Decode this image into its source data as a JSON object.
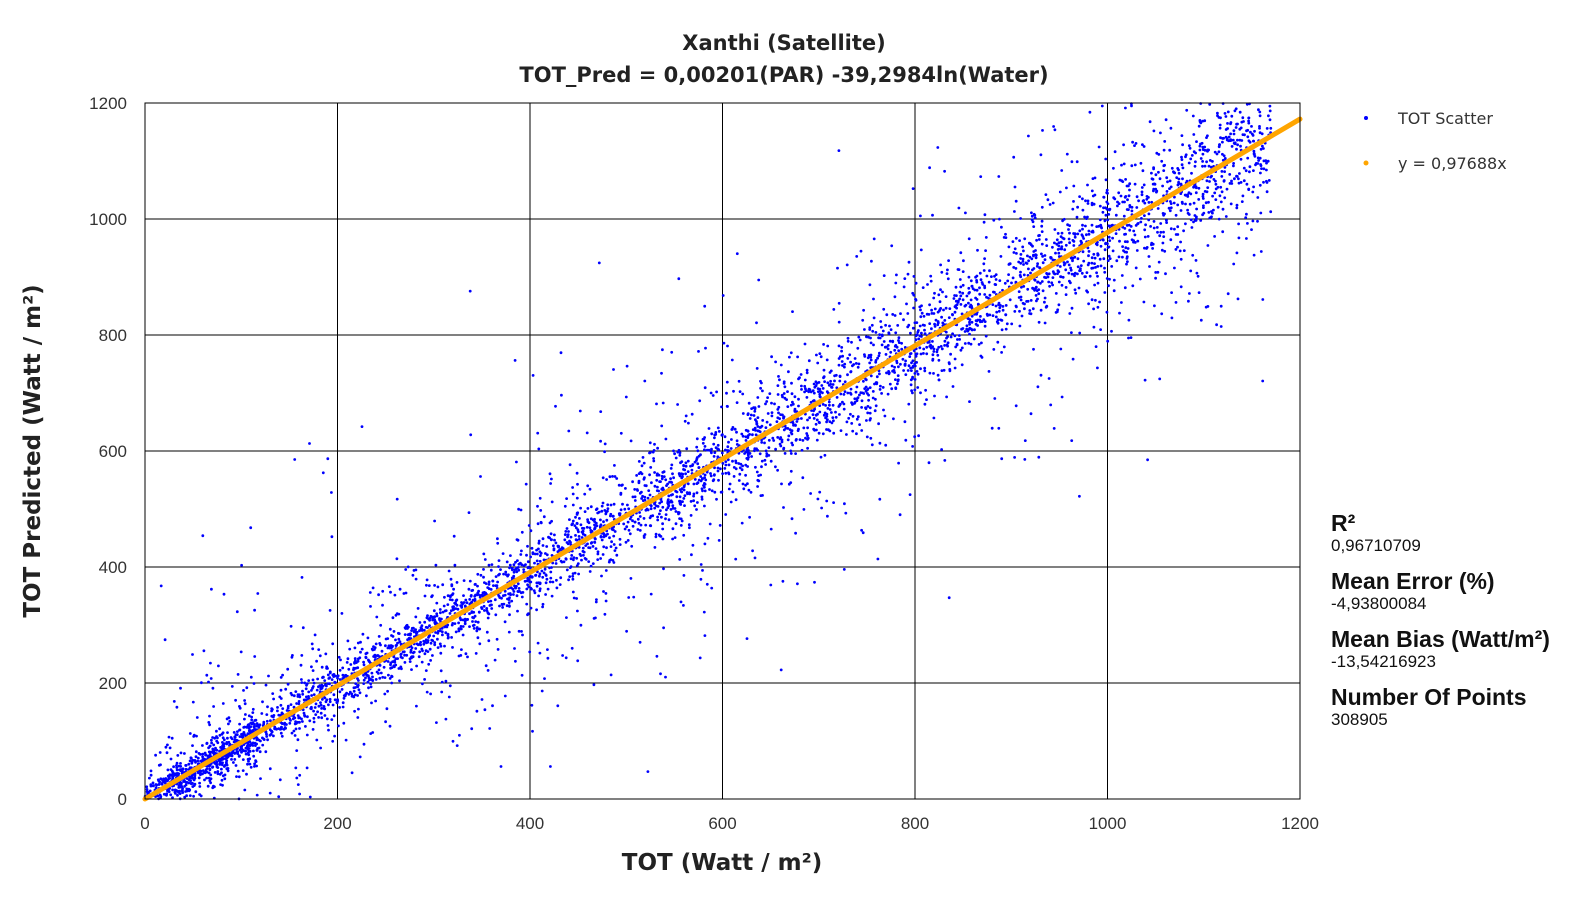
{
  "chart_data": {
    "type": "scatter",
    "title": "Xanthi (Satellite)",
    "subtitle": "TOT_Pred = 0,00201(PAR) -39,2984ln(Water)",
    "xlabel": "TOT (Watt / m²)",
    "ylabel": "TOT Predicted (Watt / m²)",
    "xlim": [
      0,
      1200
    ],
    "ylim": [
      0,
      1200
    ],
    "xticks": [
      "0",
      "200",
      "400",
      "600",
      "800",
      "1000",
      "1200"
    ],
    "yticks": [
      "0",
      "200",
      "400",
      "600",
      "800",
      "1000",
      "1200"
    ],
    "grid": true,
    "legend_position": "right",
    "series": [
      {
        "name": "TOT Scatter",
        "kind": "scatter",
        "color": "#0000ff"
      },
      {
        "name": "y = 0,97688x",
        "kind": "line",
        "slope": 0.97688,
        "color": "#ffa500"
      }
    ]
  },
  "stats": [
    {
      "label": "R²",
      "value": "0,96710709"
    },
    {
      "label": "Mean Error (%)",
      "value": "-4,93800084"
    },
    {
      "label": "Mean Bias (Watt/m²)",
      "value": "-13,54216923"
    },
    {
      "label": "Number Of Points",
      "value": "308905"
    }
  ]
}
